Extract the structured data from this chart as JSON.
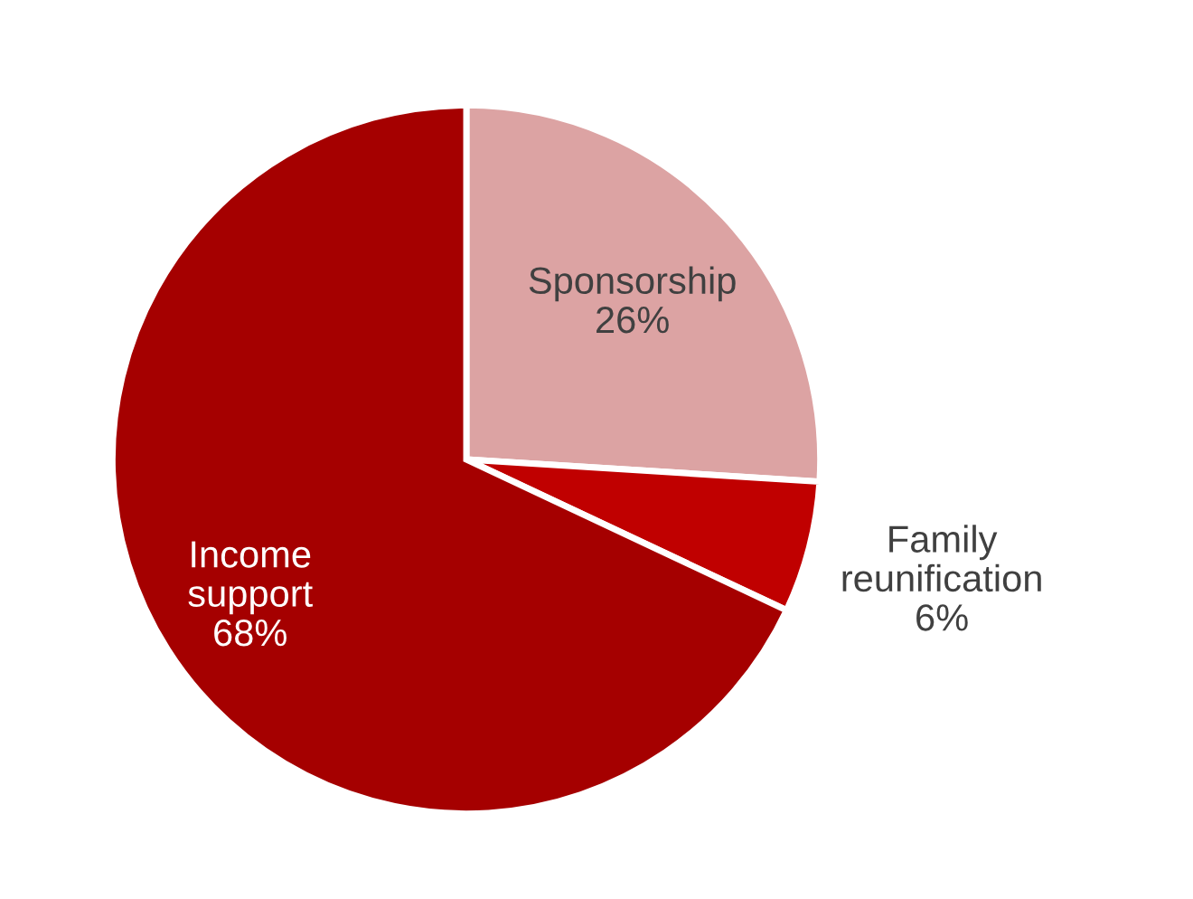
{
  "chart_data": {
    "type": "pie",
    "categories": [
      "Sponsorship",
      "Family reunification",
      "Income support"
    ],
    "values": [
      26,
      6,
      68
    ],
    "value_labels": [
      "26%",
      "6%",
      "68%"
    ],
    "colors": [
      "#dca3a3",
      "#c00000",
      "#a50000"
    ],
    "legend": false
  }
}
